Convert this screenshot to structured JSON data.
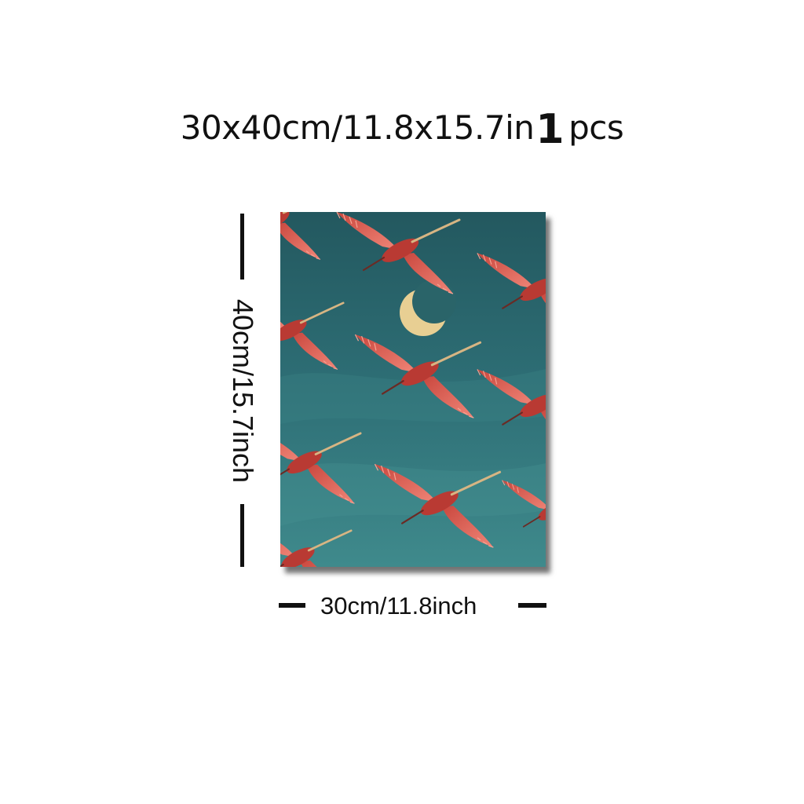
{
  "headline": {
    "size_text": "30x40cm/11.8x15.7in",
    "quantity": "1",
    "unit": "pcs"
  },
  "dimensions": {
    "height_label": "40cm/15.7inch",
    "width_label": "30cm/11.8inch"
  },
  "artwork": {
    "subject": "flock of red spoonbills flying under a crescent moon",
    "sky_color": "#2e6f76",
    "bird_color": "#d9564a",
    "moon_color": "#e8cf93"
  }
}
